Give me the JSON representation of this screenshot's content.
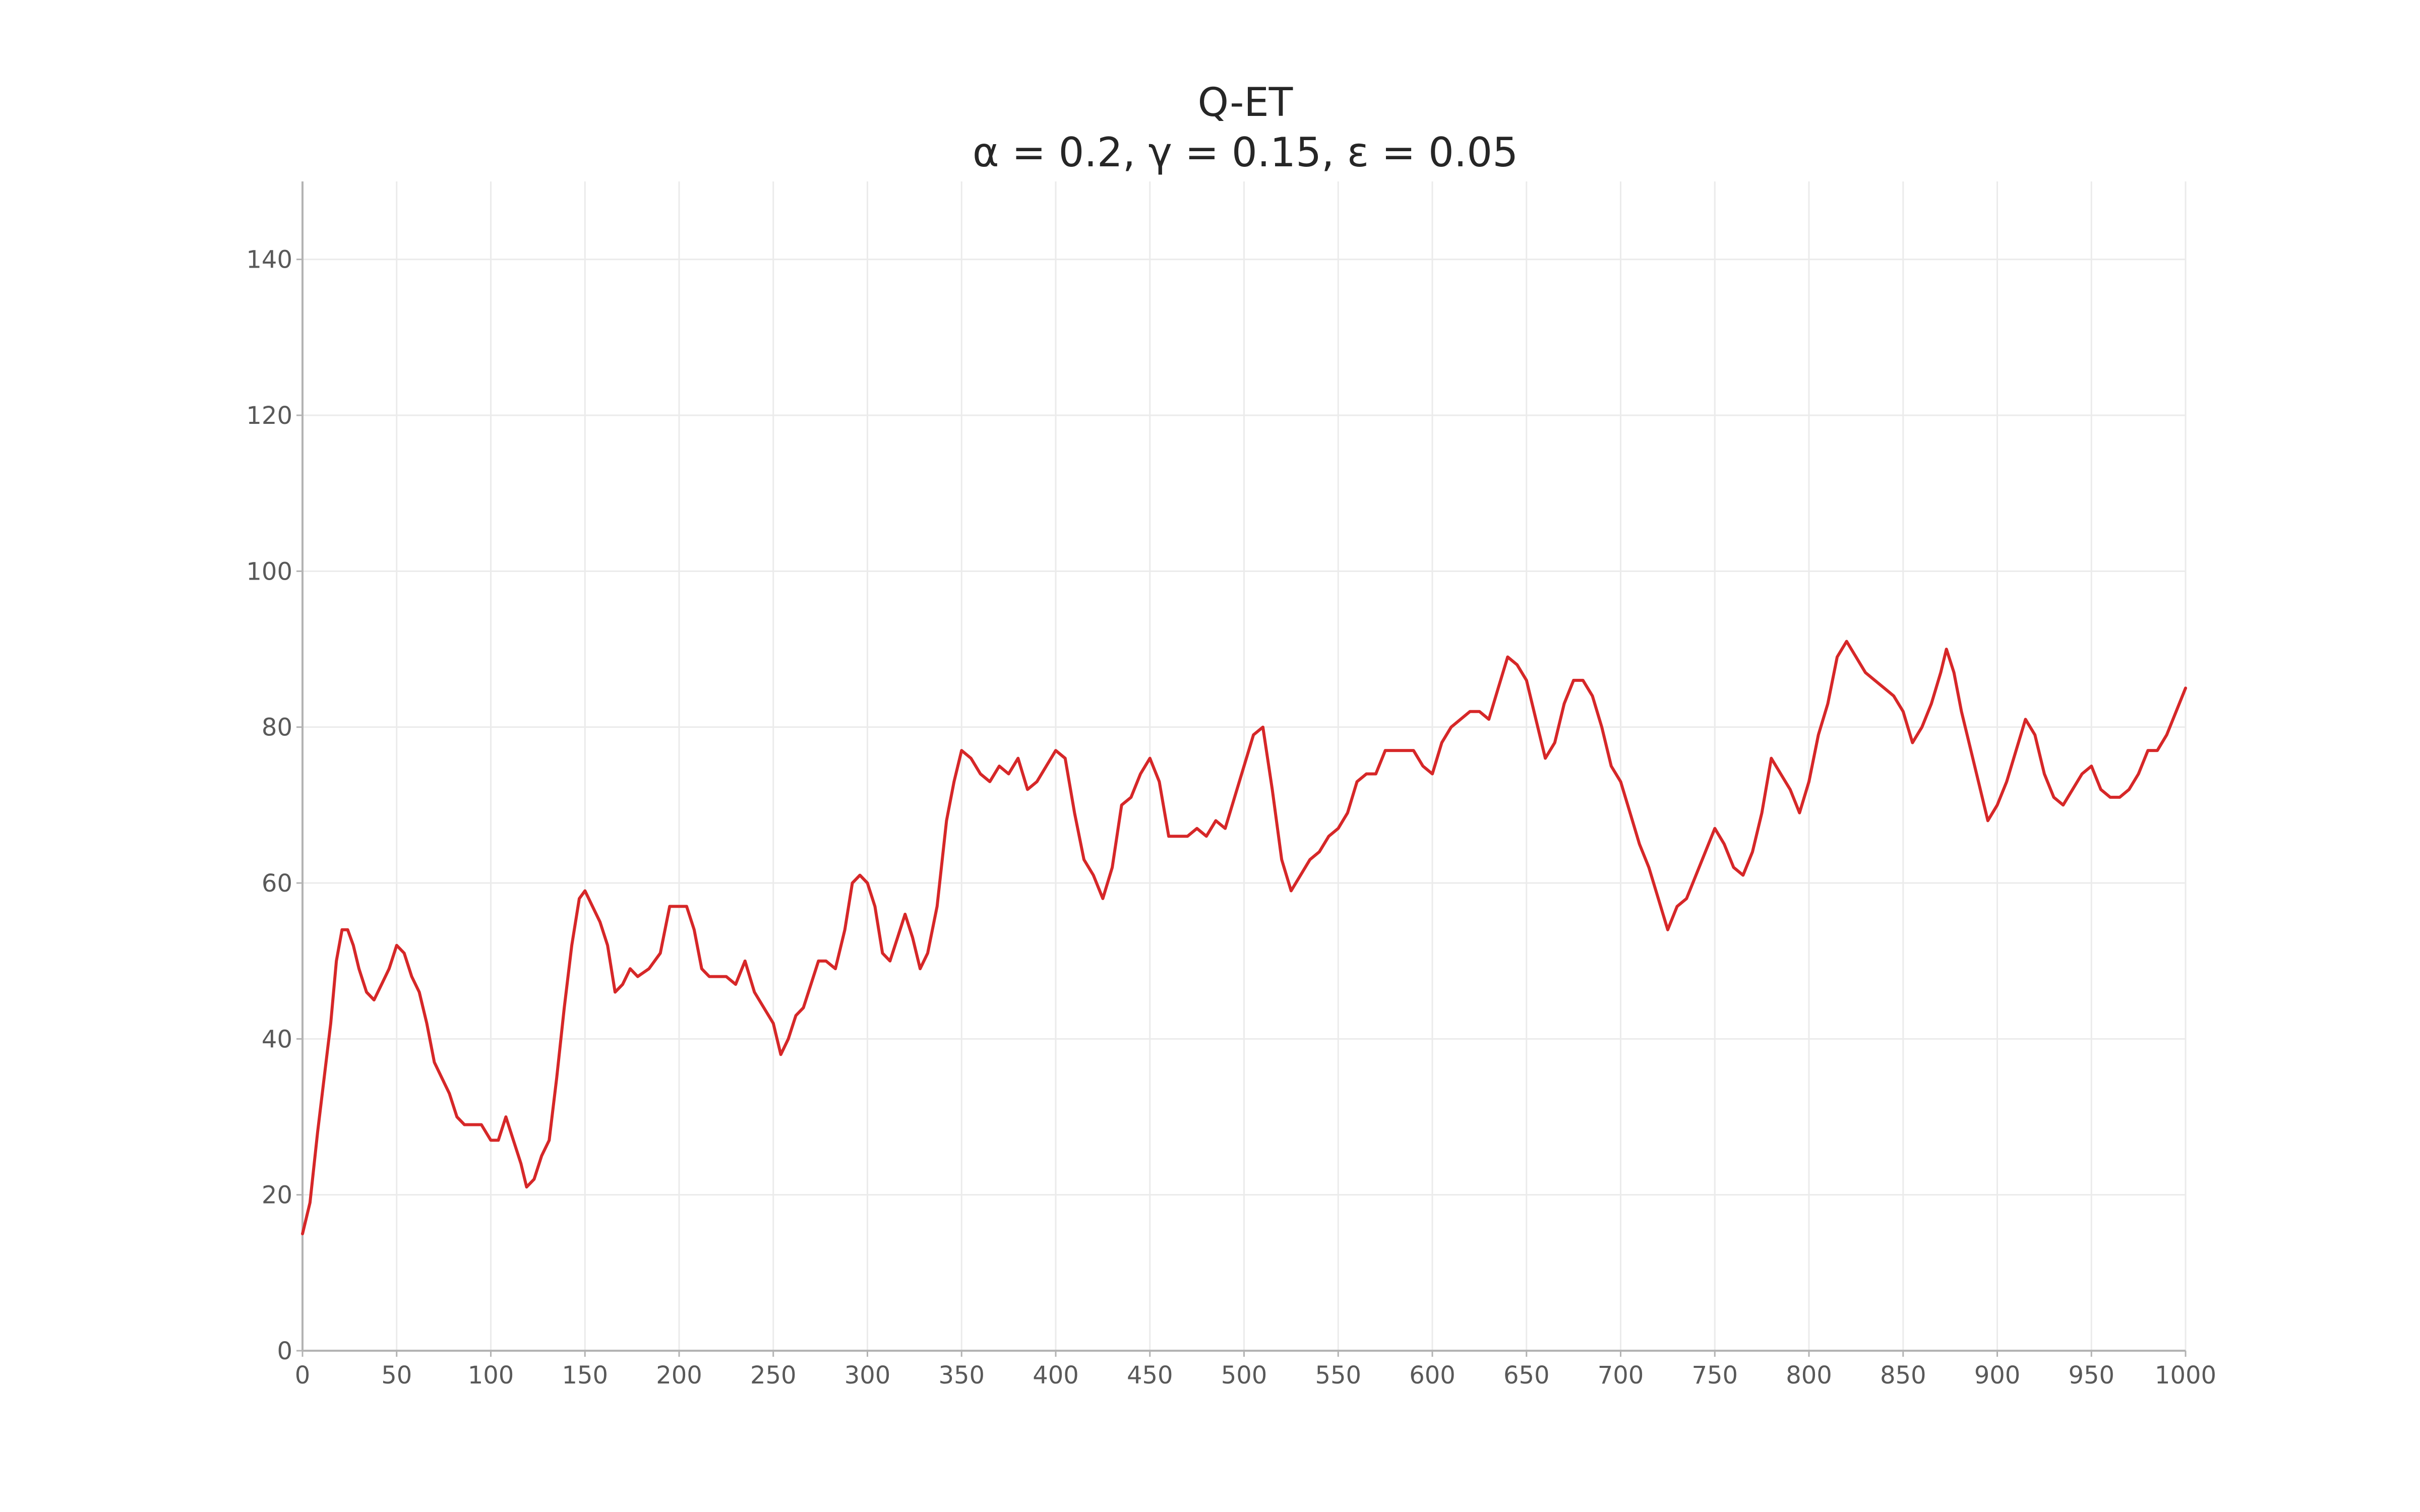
{
  "chart_data": {
    "type": "line",
    "title": "Q-ET",
    "subtitle": "α = 0.2, γ = 0.15, ε = 0.05",
    "xlabel": "",
    "ylabel": "",
    "xlim": [
      0,
      1000
    ],
    "ylim": [
      0,
      150
    ],
    "x_ticks": [
      0,
      50,
      100,
      150,
      200,
      250,
      300,
      350,
      400,
      450,
      500,
      550,
      600,
      650,
      700,
      750,
      800,
      850,
      900,
      950,
      1000
    ],
    "y_ticks": [
      0,
      20,
      40,
      60,
      80,
      100,
      120,
      140
    ],
    "grid": true,
    "legend": "none",
    "colors": {
      "series": "#d62728",
      "grid": "#ebebeb",
      "axis": "#b3b3b3",
      "text": "#262626"
    },
    "series": [
      {
        "points": [
          [
            0,
            15
          ],
          [
            4,
            19
          ],
          [
            8,
            28
          ],
          [
            12,
            36
          ],
          [
            15,
            42
          ],
          [
            18,
            50
          ],
          [
            21,
            54
          ],
          [
            24,
            54
          ],
          [
            27,
            52
          ],
          [
            30,
            49
          ],
          [
            34,
            46
          ],
          [
            38,
            45
          ],
          [
            42,
            47
          ],
          [
            46,
            49
          ],
          [
            50,
            52
          ],
          [
            54,
            51
          ],
          [
            58,
            48
          ],
          [
            62,
            46
          ],
          [
            66,
            42
          ],
          [
            70,
            37
          ],
          [
            74,
            35
          ],
          [
            78,
            33
          ],
          [
            82,
            30
          ],
          [
            86,
            29
          ],
          [
            90,
            29
          ],
          [
            95,
            29
          ],
          [
            100,
            27
          ],
          [
            104,
            27
          ],
          [
            108,
            30
          ],
          [
            112,
            27
          ],
          [
            116,
            24
          ],
          [
            119,
            21
          ],
          [
            123,
            22
          ],
          [
            127,
            25
          ],
          [
            131,
            27
          ],
          [
            135,
            35
          ],
          [
            139,
            44
          ],
          [
            143,
            52
          ],
          [
            147,
            58
          ],
          [
            150,
            59
          ],
          [
            154,
            57
          ],
          [
            158,
            55
          ],
          [
            162,
            52
          ],
          [
            166,
            46
          ],
          [
            170,
            47
          ],
          [
            174,
            49
          ],
          [
            178,
            48
          ],
          [
            184,
            49
          ],
          [
            190,
            51
          ],
          [
            195,
            57
          ],
          [
            200,
            57
          ],
          [
            204,
            57
          ],
          [
            208,
            54
          ],
          [
            212,
            49
          ],
          [
            216,
            48
          ],
          [
            220,
            48
          ],
          [
            225,
            48
          ],
          [
            230,
            47
          ],
          [
            235,
            50
          ],
          [
            240,
            46
          ],
          [
            245,
            44
          ],
          [
            250,
            42
          ],
          [
            254,
            38
          ],
          [
            258,
            40
          ],
          [
            262,
            43
          ],
          [
            266,
            44
          ],
          [
            270,
            47
          ],
          [
            274,
            50
          ],
          [
            278,
            50
          ],
          [
            283,
            49
          ],
          [
            288,
            54
          ],
          [
            292,
            60
          ],
          [
            296,
            61
          ],
          [
            300,
            60
          ],
          [
            304,
            57
          ],
          [
            308,
            51
          ],
          [
            312,
            50
          ],
          [
            316,
            53
          ],
          [
            320,
            56
          ],
          [
            324,
            53
          ],
          [
            328,
            49
          ],
          [
            332,
            51
          ],
          [
            337,
            57
          ],
          [
            342,
            68
          ],
          [
            346,
            73
          ],
          [
            350,
            77
          ],
          [
            355,
            76
          ],
          [
            360,
            74
          ],
          [
            365,
            73
          ],
          [
            370,
            75
          ],
          [
            375,
            74
          ],
          [
            380,
            76
          ],
          [
            385,
            72
          ],
          [
            390,
            73
          ],
          [
            395,
            75
          ],
          [
            400,
            77
          ],
          [
            405,
            76
          ],
          [
            410,
            69
          ],
          [
            415,
            63
          ],
          [
            420,
            61
          ],
          [
            425,
            58
          ],
          [
            430,
            62
          ],
          [
            435,
            70
          ],
          [
            440,
            71
          ],
          [
            445,
            74
          ],
          [
            450,
            76
          ],
          [
            455,
            73
          ],
          [
            460,
            66
          ],
          [
            465,
            66
          ],
          [
            470,
            66
          ],
          [
            475,
            67
          ],
          [
            480,
            66
          ],
          [
            485,
            68
          ],
          [
            490,
            67
          ],
          [
            495,
            71
          ],
          [
            500,
            75
          ],
          [
            505,
            79
          ],
          [
            510,
            80
          ],
          [
            515,
            72
          ],
          [
            520,
            63
          ],
          [
            525,
            59
          ],
          [
            530,
            61
          ],
          [
            535,
            63
          ],
          [
            540,
            64
          ],
          [
            545,
            66
          ],
          [
            550,
            67
          ],
          [
            555,
            69
          ],
          [
            560,
            73
          ],
          [
            565,
            74
          ],
          [
            570,
            74
          ],
          [
            575,
            77
          ],
          [
            580,
            77
          ],
          [
            585,
            77
          ],
          [
            590,
            77
          ],
          [
            595,
            75
          ],
          [
            600,
            74
          ],
          [
            605,
            78
          ],
          [
            610,
            80
          ],
          [
            615,
            81
          ],
          [
            620,
            82
          ],
          [
            625,
            82
          ],
          [
            630,
            81
          ],
          [
            635,
            85
          ],
          [
            640,
            89
          ],
          [
            645,
            88
          ],
          [
            650,
            86
          ],
          [
            655,
            81
          ],
          [
            660,
            76
          ],
          [
            665,
            78
          ],
          [
            670,
            83
          ],
          [
            675,
            86
          ],
          [
            680,
            86
          ],
          [
            685,
            84
          ],
          [
            690,
            80
          ],
          [
            695,
            75
          ],
          [
            700,
            73
          ],
          [
            705,
            69
          ],
          [
            710,
            65
          ],
          [
            715,
            62
          ],
          [
            720,
            58
          ],
          [
            725,
            54
          ],
          [
            730,
            57
          ],
          [
            735,
            58
          ],
          [
            740,
            61
          ],
          [
            745,
            64
          ],
          [
            750,
            67
          ],
          [
            755,
            65
          ],
          [
            760,
            62
          ],
          [
            765,
            61
          ],
          [
            770,
            64
          ],
          [
            775,
            69
          ],
          [
            780,
            76
          ],
          [
            785,
            74
          ],
          [
            790,
            72
          ],
          [
            795,
            69
          ],
          [
            800,
            73
          ],
          [
            805,
            79
          ],
          [
            810,
            83
          ],
          [
            815,
            89
          ],
          [
            820,
            91
          ],
          [
            825,
            89
          ],
          [
            830,
            87
          ],
          [
            835,
            86
          ],
          [
            840,
            85
          ],
          [
            845,
            84
          ],
          [
            850,
            82
          ],
          [
            855,
            78
          ],
          [
            860,
            80
          ],
          [
            865,
            83
          ],
          [
            870,
            87
          ],
          [
            873,
            90
          ],
          [
            877,
            87
          ],
          [
            881,
            82
          ],
          [
            885,
            78
          ],
          [
            890,
            73
          ],
          [
            895,
            68
          ],
          [
            900,
            70
          ],
          [
            905,
            73
          ],
          [
            910,
            77
          ],
          [
            915,
            81
          ],
          [
            920,
            79
          ],
          [
            925,
            74
          ],
          [
            930,
            71
          ],
          [
            935,
            70
          ],
          [
            940,
            72
          ],
          [
            945,
            74
          ],
          [
            950,
            75
          ],
          [
            955,
            72
          ],
          [
            960,
            71
          ],
          [
            965,
            71
          ],
          [
            970,
            72
          ],
          [
            975,
            74
          ],
          [
            980,
            77
          ],
          [
            985,
            77
          ],
          [
            990,
            79
          ],
          [
            995,
            82
          ],
          [
            1000,
            85
          ]
        ]
      }
    ]
  }
}
